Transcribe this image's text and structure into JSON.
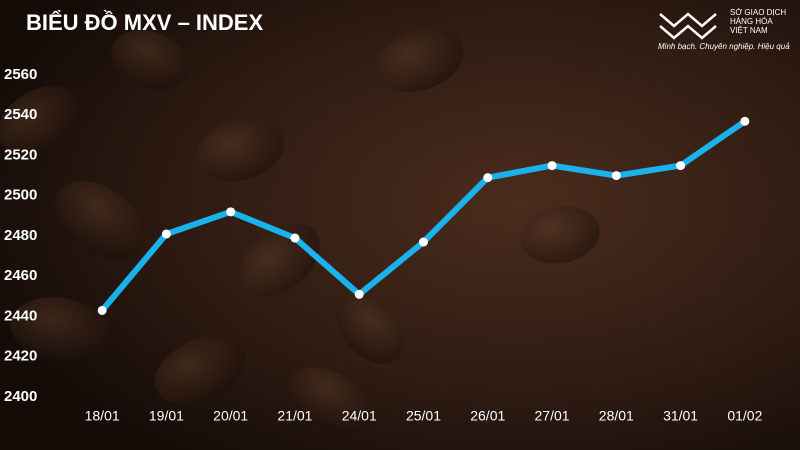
{
  "chart_data": {
    "type": "line",
    "title": "BIỂU ĐỒ MXV – INDEX",
    "annotations": [
      "SỞ GIAO DỊCH",
      "HÀNG HÓA",
      "VIỆT NAM",
      "Minh bạch. Chuyên nghiệp. Hiệu quả"
    ],
    "categories": [
      "18/01",
      "19/01",
      "20/01",
      "21/01",
      "24/01",
      "25/01",
      "26/01",
      "27/01",
      "28/01",
      "31/01",
      "01/02"
    ],
    "values": [
      2443,
      2481,
      2492,
      2479,
      2451,
      2477,
      2509,
      2515,
      2510,
      2515,
      2537
    ],
    "color": "#1ab2ec",
    "marker_color": "#ffffff",
    "ylim": [
      2400,
      2560
    ],
    "yticks": [
      2400,
      2420,
      2440,
      2460,
      2480,
      2500,
      2520,
      2540,
      2560
    ],
    "grid": false
  }
}
